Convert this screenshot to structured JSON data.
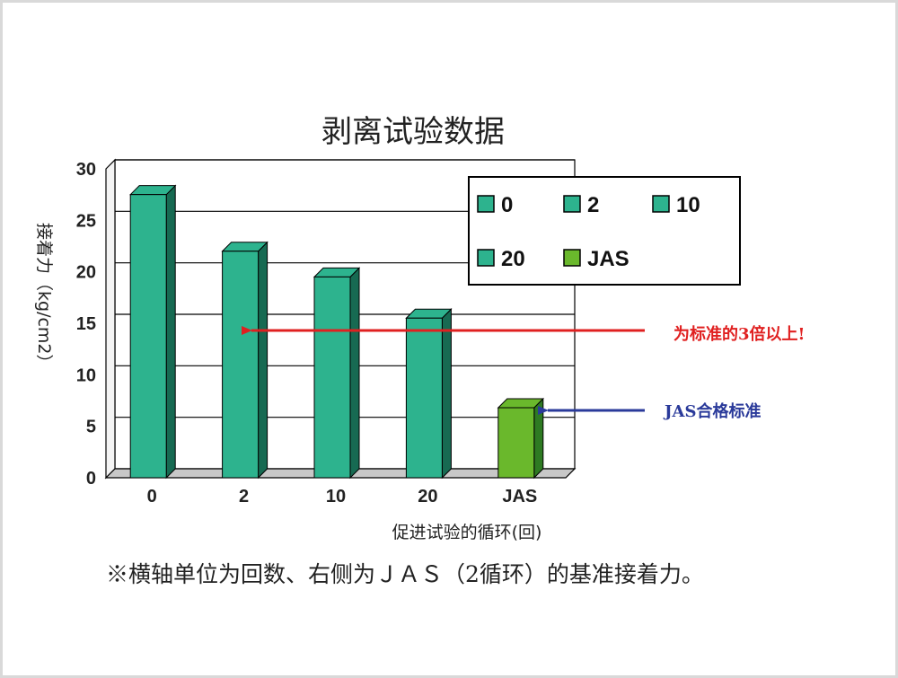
{
  "chart_data": {
    "type": "bar",
    "title": "剥离试验数据",
    "ylabel": "接着力（kg/cm2）",
    "xlabel": "促进试验的循环(回)",
    "categories": [
      "0",
      "2",
      "10",
      "20",
      "JAS"
    ],
    "values": [
      27.5,
      22,
      19.5,
      15.5,
      6.8
    ],
    "ylim": [
      0,
      30
    ],
    "yticks": [
      "0",
      "5",
      "10",
      "15",
      "20",
      "25",
      "30"
    ],
    "legend": {
      "position": "top-right",
      "entries": [
        "0",
        "2",
        "10",
        "20",
        "JAS"
      ]
    },
    "colors": {
      "series": "#2db38e",
      "series_side": "#176a52",
      "jas": "#6ab82c",
      "jas_side": "#2e7a22",
      "red_arrow": "#e02020",
      "blue_arrow": "#2a3a9a"
    },
    "annotations": {
      "triple": "为标准的3倍以上!",
      "jas_standard": "JAS合格标准"
    },
    "footnote": "※横轴单位为回数、右侧为ＪＡＳ（2循环）的基准接着力。"
  }
}
